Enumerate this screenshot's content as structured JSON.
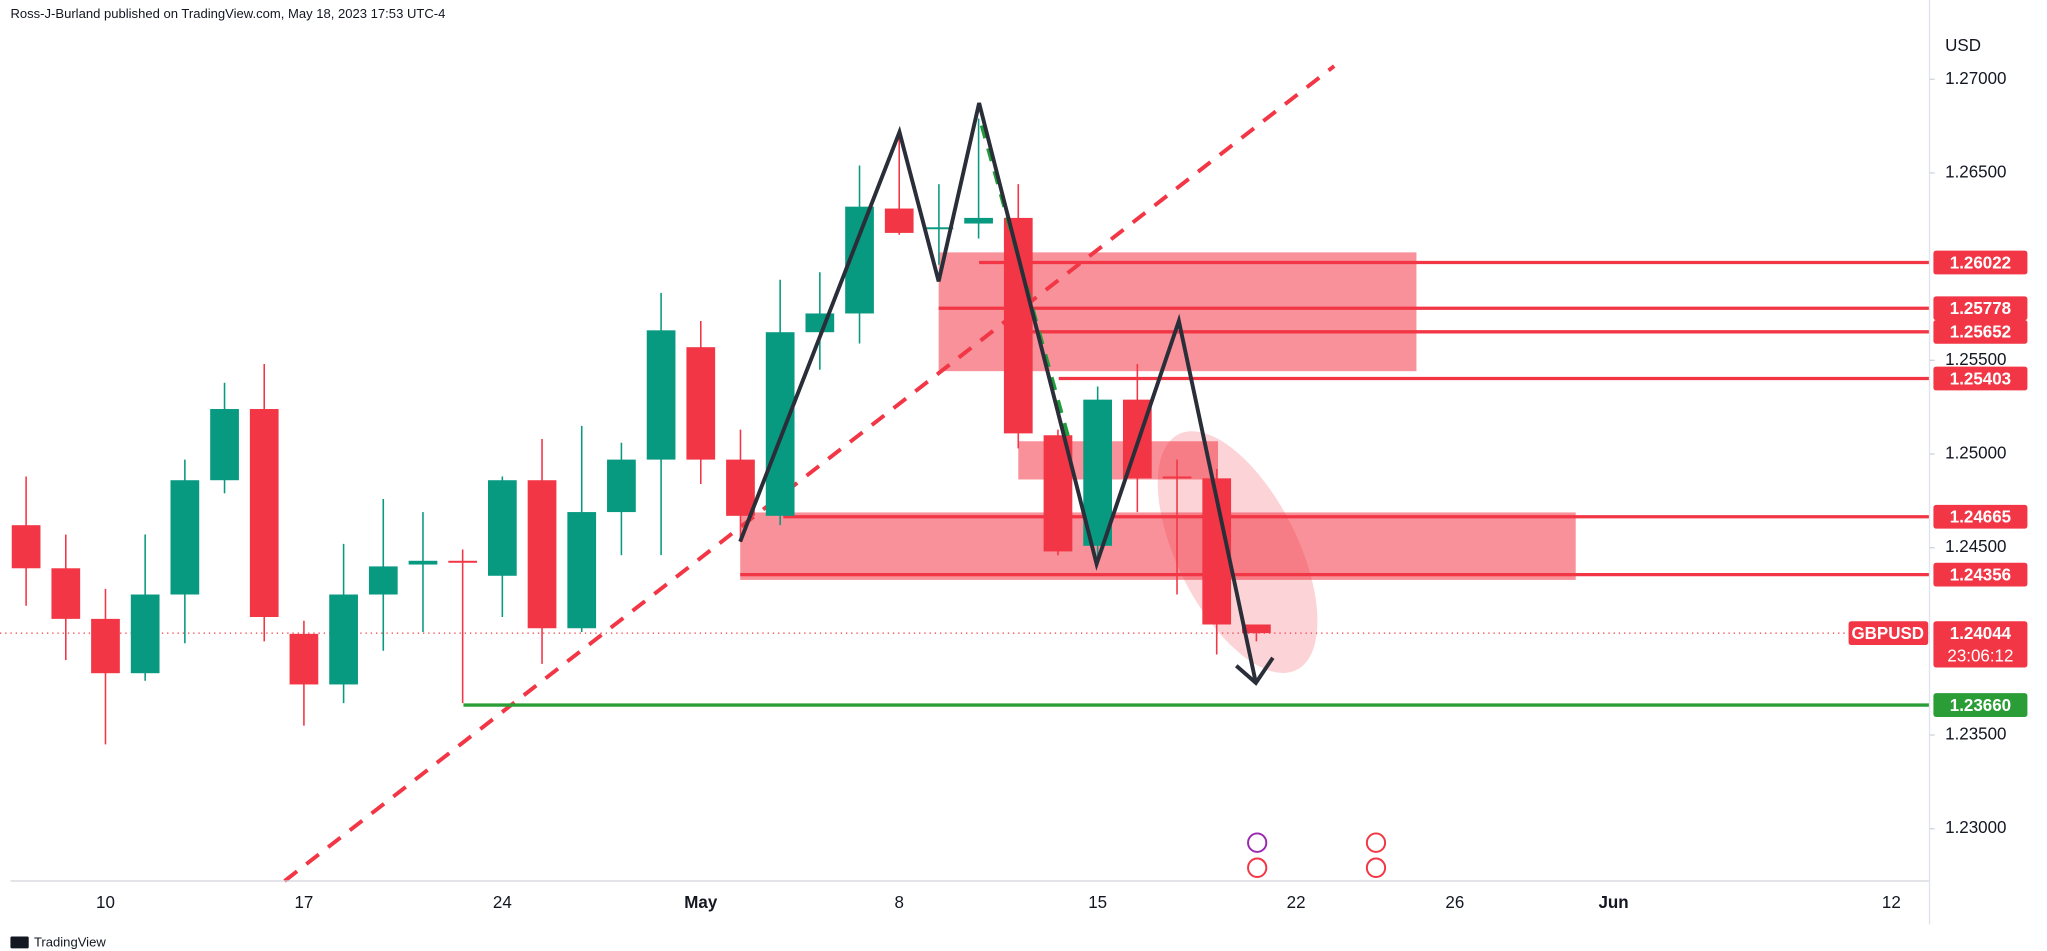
{
  "header": {
    "publisher": "Ross-J-Burland published on TradingView.com, May 18, 2023 17:53 UTC-4",
    "brand": "TradingView"
  },
  "chart_data": {
    "type": "candlestick",
    "symbol": "GBPUSD",
    "currency": "USD",
    "categories": [
      null,
      null,
      "10",
      null,
      null,
      null,
      null,
      "17",
      null,
      null,
      null,
      null,
      "24",
      null,
      null,
      null,
      null,
      "May",
      null,
      null,
      null,
      null,
      "8",
      null,
      null,
      null,
      null,
      "15",
      null,
      null,
      null,
      null,
      "22",
      null,
      null,
      null,
      "26",
      null,
      null,
      null,
      "Jun",
      null,
      null,
      null,
      null,
      null,
      null,
      "12"
    ],
    "open": [
      1.2462,
      1.2439,
      1.2412,
      1.2383,
      1.2425,
      1.2486,
      1.2524,
      1.2404,
      1.2377,
      1.2425,
      1.2441,
      1.2443,
      1.2435,
      1.2486,
      1.2407,
      1.2469,
      1.2497,
      1.2557,
      1.2497,
      1.2467,
      1.2565,
      1.2575,
      1.2631,
      1.262,
      1.2623,
      1.2626,
      1.251,
      1.2451,
      1.2529,
      1.2488,
      1.2487,
      1.2409,
      null,
      null,
      null,
      null,
      null,
      null,
      null,
      null,
      null,
      null,
      null,
      null,
      null,
      null,
      null,
      null
    ],
    "high": [
      1.2488,
      1.2457,
      1.2428,
      1.2457,
      1.2497,
      1.2538,
      1.2548,
      1.2411,
      1.2452,
      1.2476,
      1.2469,
      1.2449,
      1.2488,
      1.2508,
      1.2515,
      1.2506,
      1.2586,
      1.2571,
      1.2513,
      1.2593,
      1.2597,
      1.2654,
      1.267,
      1.2644,
      1.2679,
      1.2644,
      1.2513,
      1.2536,
      1.2548,
      1.2497,
      1.2492,
      1.2409,
      null,
      null,
      null,
      null,
      null,
      null,
      null,
      null,
      null,
      null,
      null,
      null,
      null,
      null,
      null,
      null
    ],
    "low": [
      1.2419,
      1.239,
      1.2345,
      1.2379,
      1.2399,
      1.2479,
      1.24,
      1.2355,
      1.2367,
      1.2395,
      1.2405,
      1.2367,
      1.2413,
      1.2388,
      1.2405,
      1.2446,
      1.2446,
      1.2484,
      1.2453,
      1.2462,
      1.2545,
      1.2559,
      1.2617,
      1.2601,
      1.2615,
      1.2503,
      1.2446,
      1.2443,
      1.2469,
      1.2425,
      1.2393,
      1.24,
      null,
      null,
      null,
      null,
      null,
      null,
      null,
      null,
      null,
      null,
      null,
      null,
      null,
      null,
      null,
      null
    ],
    "close": [
      1.2439,
      1.2412,
      1.2383,
      1.2425,
      1.2486,
      1.2524,
      1.2413,
      1.2377,
      1.2425,
      1.244,
      1.2443,
      1.2442,
      1.2486,
      1.2407,
      1.2469,
      1.2497,
      1.2566,
      1.2497,
      1.2467,
      1.2565,
      1.2575,
      1.2632,
      1.2618,
      1.2621,
      1.2626,
      1.2511,
      1.2448,
      1.2529,
      1.2487,
      1.2487,
      1.2409,
      1.24044,
      null,
      null,
      null,
      null,
      null,
      null,
      null,
      null,
      null,
      null,
      null,
      null,
      null,
      null,
      null,
      null
    ],
    "up_color": "#089981",
    "down_color": "#f23645",
    "ylim": [
      1.22721,
      1.27423
    ],
    "yticks": [
      {
        "value": 1.27,
        "label": "1.27000"
      },
      {
        "value": 1.265,
        "label": "1.26500"
      },
      {
        "value": 1.255,
        "label": "1.25500"
      },
      {
        "value": 1.25,
        "label": "1.25000"
      },
      {
        "value": 1.245,
        "label": "1.24500"
      },
      {
        "value": 1.235,
        "label": "1.23500"
      },
      {
        "value": 1.23,
        "label": "1.23000"
      }
    ],
    "last_price": 1.24044,
    "countdown": "23:06:12",
    "levels": [
      {
        "value": 1.26022,
        "color": "#f23645"
      },
      {
        "value": 1.25778,
        "color": "#f23645"
      },
      {
        "value": 1.25652,
        "color": "#f23645"
      },
      {
        "value": 1.25403,
        "color": "#f23645"
      },
      {
        "value": 1.24665,
        "color": "#f23645"
      },
      {
        "value": 1.24356,
        "color": "#f23645"
      },
      {
        "value": 1.2366,
        "label": "1.23660",
        "color": "#2a9d36"
      }
    ],
    "zones": [
      {
        "top": 1.26076,
        "bottom": 1.25442
      },
      {
        "top": 1.24688,
        "bottom": 1.24328
      },
      {
        "top": 1.25068,
        "bottom": 1.24864
      }
    ]
  }
}
